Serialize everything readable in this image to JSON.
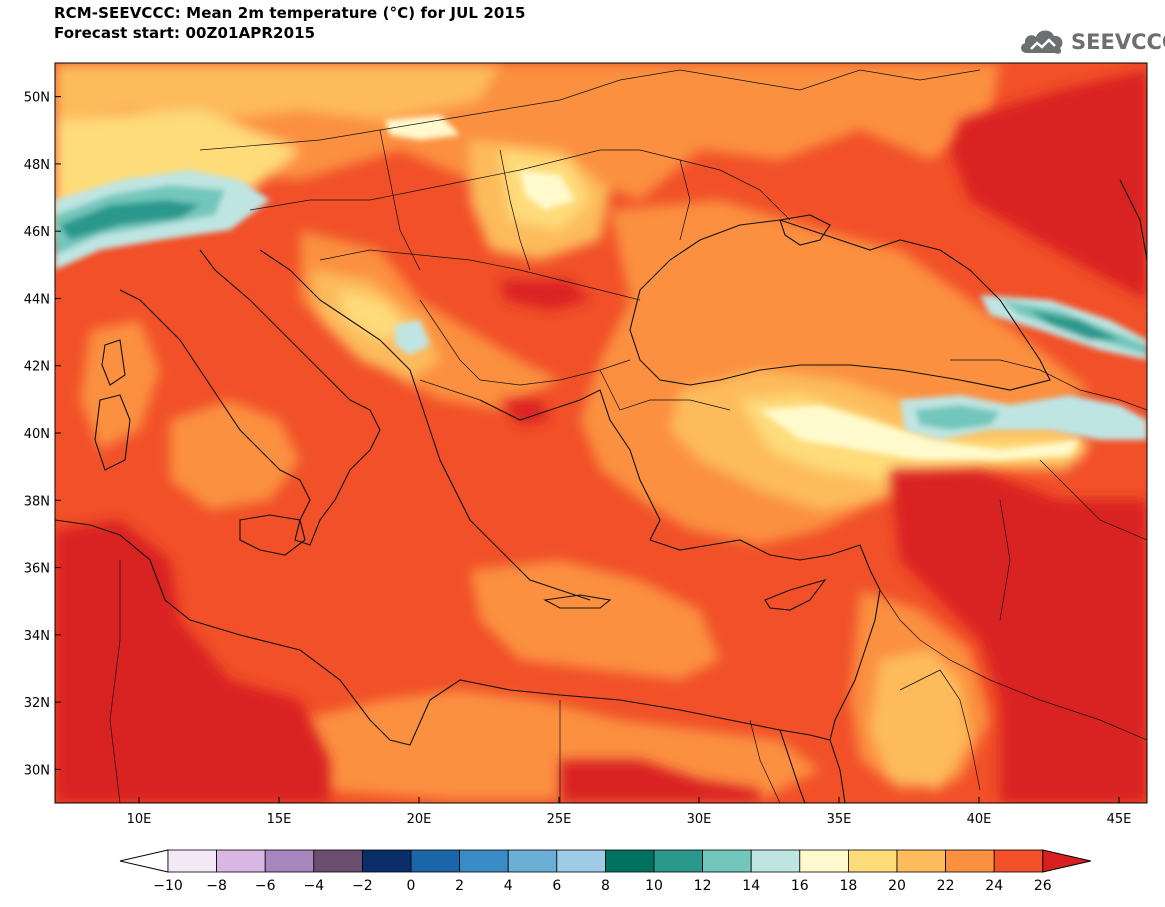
{
  "header": {
    "title_line1": "RCM-SEEVCCC: Mean 2m temperature (°C) for JUL 2015",
    "title_line2": "Forecast start: 00Z01APR2015",
    "logo_text": "SEEVCCC",
    "logo_icon": "cloud-icon"
  },
  "map": {
    "lon_range": [
      7,
      46
    ],
    "lat_range": [
      29,
      51
    ],
    "lon_ticks": [
      {
        "value": 10,
        "label": "10E"
      },
      {
        "value": 15,
        "label": "15E"
      },
      {
        "value": 20,
        "label": "20E"
      },
      {
        "value": 25,
        "label": "25E"
      },
      {
        "value": 30,
        "label": "30E"
      },
      {
        "value": 35,
        "label": "35E"
      },
      {
        "value": 40,
        "label": "40E"
      },
      {
        "value": 45,
        "label": "45E"
      }
    ],
    "lat_ticks": [
      {
        "value": 50,
        "label": "50N"
      },
      {
        "value": 48,
        "label": "48N"
      },
      {
        "value": 46,
        "label": "46N"
      },
      {
        "value": 44,
        "label": "44N"
      },
      {
        "value": 42,
        "label": "42N"
      },
      {
        "value": 40,
        "label": "40N"
      },
      {
        "value": 38,
        "label": "38N"
      },
      {
        "value": 36,
        "label": "36N"
      },
      {
        "value": 34,
        "label": "34N"
      },
      {
        "value": 32,
        "label": "32N"
      },
      {
        "value": 30,
        "label": "30N"
      }
    ]
  },
  "colorbar": {
    "labels": [
      "-10",
      "-8",
      "-6",
      "-4",
      "-2",
      "0",
      "2",
      "4",
      "6",
      "8",
      "10",
      "12",
      "14",
      "16",
      "18",
      "20",
      "22",
      "24",
      "26"
    ],
    "colors": {
      "under": "#ffffff",
      "bins": [
        "#f3e8f6",
        "#dab6e4",
        "#a985bd",
        "#6b4d6f",
        "#0b2e6b",
        "#1a66a8",
        "#3a8cc6",
        "#6bafd6",
        "#9fcbe6",
        "#00705f",
        "#2a988d",
        "#72c6bb",
        "#bfe5e3",
        "#fffacd",
        "#fedc7a",
        "#fdbb5b",
        "#fb9040",
        "#f15028"
      ],
      "over": "#d92020"
    }
  }
}
